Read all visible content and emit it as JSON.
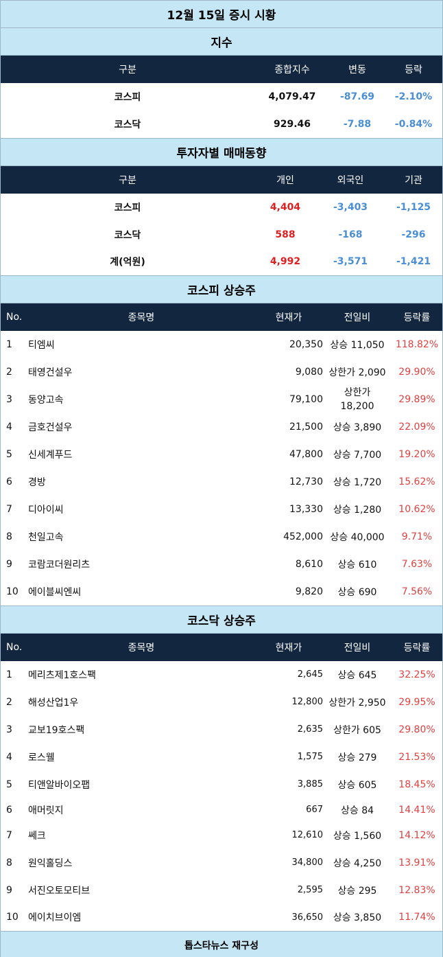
{
  "title": "12월 15일 증시 시황",
  "index_section": {
    "heading": "지수",
    "columns": [
      "구분",
      "종합지수",
      "변동",
      "등락"
    ],
    "rows": [
      {
        "name": "코스피",
        "value": "4,079.47",
        "change": "-87.69",
        "rate": "-2.10%"
      },
      {
        "name": "코스닥",
        "value": "929.46",
        "change": "-7.88",
        "rate": "-0.84%"
      }
    ]
  },
  "investor_section": {
    "heading": "투자자별 매매동향",
    "columns": [
      "구분",
      "개인",
      "외국인",
      "기관"
    ],
    "rows": [
      {
        "name": "코스피",
        "individual": "4,404",
        "foreign": "-3,403",
        "institution": "-1,125"
      },
      {
        "name": "코스닥",
        "individual": "588",
        "foreign": "-168",
        "institution": "-296"
      },
      {
        "name": "계(억원)",
        "individual": "4,992",
        "foreign": "-3,571",
        "institution": "-1,421"
      }
    ]
  },
  "kospi_section": {
    "heading": "코스피 상승주",
    "columns": [
      "No.",
      "종목명",
      "현재가",
      "전일비",
      "등락률"
    ],
    "rows": [
      {
        "no": "1",
        "name": "티엠씨",
        "price": "20,350",
        "diff": "상승 11,050",
        "rate": "118.82%"
      },
      {
        "no": "2",
        "name": "태영건설우",
        "price": "9,080",
        "diff": "상한가 2,090",
        "rate": "29.90%"
      },
      {
        "no": "3",
        "name": "동양고속",
        "price": "79,100",
        "diff": "상한가 18,200",
        "rate": "29.89%"
      },
      {
        "no": "4",
        "name": "금호건설우",
        "price": "21,500",
        "diff": "상승 3,890",
        "rate": "22.09%"
      },
      {
        "no": "5",
        "name": "신세계푸드",
        "price": "47,800",
        "diff": "상승 7,700",
        "rate": "19.20%"
      },
      {
        "no": "6",
        "name": "경방",
        "price": "12,730",
        "diff": "상승 1,720",
        "rate": "15.62%"
      },
      {
        "no": "7",
        "name": "디아이씨",
        "price": "13,330",
        "diff": "상승 1,280",
        "rate": "10.62%"
      },
      {
        "no": "8",
        "name": "천일고속",
        "price": "452,000",
        "diff": "상승 40,000",
        "rate": "9.71%"
      },
      {
        "no": "9",
        "name": "코람코더원리츠",
        "price": "8,610",
        "diff": "상승 610",
        "rate": "7.63%"
      },
      {
        "no": "10",
        "name": "에이블씨엔씨",
        "price": "9,820",
        "diff": "상승 690",
        "rate": "7.56%"
      }
    ]
  },
  "kosdaq_section": {
    "heading": "코스닥 상승주",
    "columns": [
      "No.",
      "종목명",
      "현재가",
      "전일비",
      "등락률"
    ],
    "rows": [
      {
        "no": "1",
        "name": "메리츠제1호스팩",
        "price": "2,645",
        "diff": "상승 645",
        "rate": "32.25%"
      },
      {
        "no": "2",
        "name": "해성산업1우",
        "price": "12,800",
        "diff": "상한가 2,950",
        "rate": "29.95%"
      },
      {
        "no": "3",
        "name": "교보19호스팩",
        "price": "2,635",
        "diff": "상한가 605",
        "rate": "29.80%"
      },
      {
        "no": "4",
        "name": "로스웰",
        "price": "1,575",
        "diff": "상승 279",
        "rate": "21.53%"
      },
      {
        "no": "5",
        "name": "티앤알바이오팹",
        "price": "3,885",
        "diff": "상승 605",
        "rate": "18.45%"
      },
      {
        "no": "6",
        "name": "애머릿지",
        "price": "667",
        "diff": "상승 84",
        "rate": "14.41%"
      },
      {
        "no": "7",
        "name": "쎄크",
        "price": "12,610",
        "diff": "상승 1,560",
        "rate": "14.12%"
      },
      {
        "no": "8",
        "name": "원익홀딩스",
        "price": "34,800",
        "diff": "상승 4,250",
        "rate": "13.91%"
      },
      {
        "no": "9",
        "name": "서진오토모티브",
        "price": "2,595",
        "diff": "상승 295",
        "rate": "12.83%"
      },
      {
        "no": "10",
        "name": "에이치브이엠",
        "price": "36,650",
        "diff": "상승 3,850",
        "rate": "11.74%"
      }
    ]
  },
  "footer": "톱스타뉴스 재구성"
}
